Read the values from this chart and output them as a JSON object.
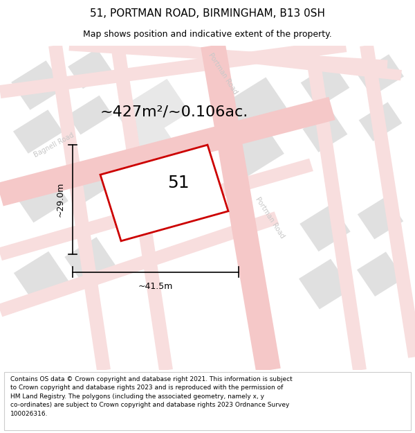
{
  "title": "51, PORTMAN ROAD, BIRMINGHAM, B13 0SH",
  "subtitle": "Map shows position and indicative extent of the property.",
  "area_text": "~427m²/~0.106ac.",
  "property_number": "51",
  "dim_width": "~41.5m",
  "dim_height": "~29.0m",
  "footer": "Contains OS data © Crown copyright and database right 2021. This information is subject to Crown copyright and database rights 2023 and is reproduced with the permission of HM Land Registry. The polygons (including the associated geometry, namely x, y co-ordinates) are subject to Crown copyright and database rights 2023 Ordnance Survey 100026316.",
  "road_color": "#f5c8c8",
  "block_color": "#e0e0e0",
  "property_edge": "#cc0000",
  "title_fontsize": 11,
  "subtitle_fontsize": 9,
  "area_fontsize": 16,
  "number_fontsize": 18,
  "dim_fontsize": 9,
  "road_label_color": "#c8c8c8",
  "footer_fontsize": 6.5
}
